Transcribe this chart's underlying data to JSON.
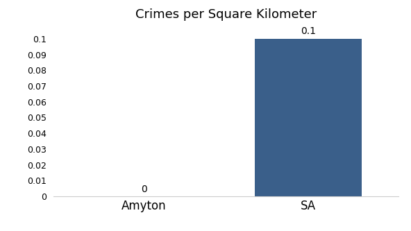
{
  "categories": [
    "Amyton",
    "SA"
  ],
  "values": [
    0,
    0.1
  ],
  "bar_colors": [
    "#3a5f8a",
    "#3a5f8a"
  ],
  "value_labels": [
    "0",
    "0.1"
  ],
  "title": "Crimes per Square Kilometer",
  "title_fontsize": 13,
  "ylim": [
    0,
    0.107
  ],
  "yticks": [
    0,
    0.01,
    0.02,
    0.03,
    0.04,
    0.05,
    0.06,
    0.07,
    0.08,
    0.09,
    0.1
  ],
  "bar_width": 0.65,
  "background_color": "#ffffff",
  "label_fontsize": 10,
  "tick_fontsize": 9,
  "xtick_fontsize": 12
}
